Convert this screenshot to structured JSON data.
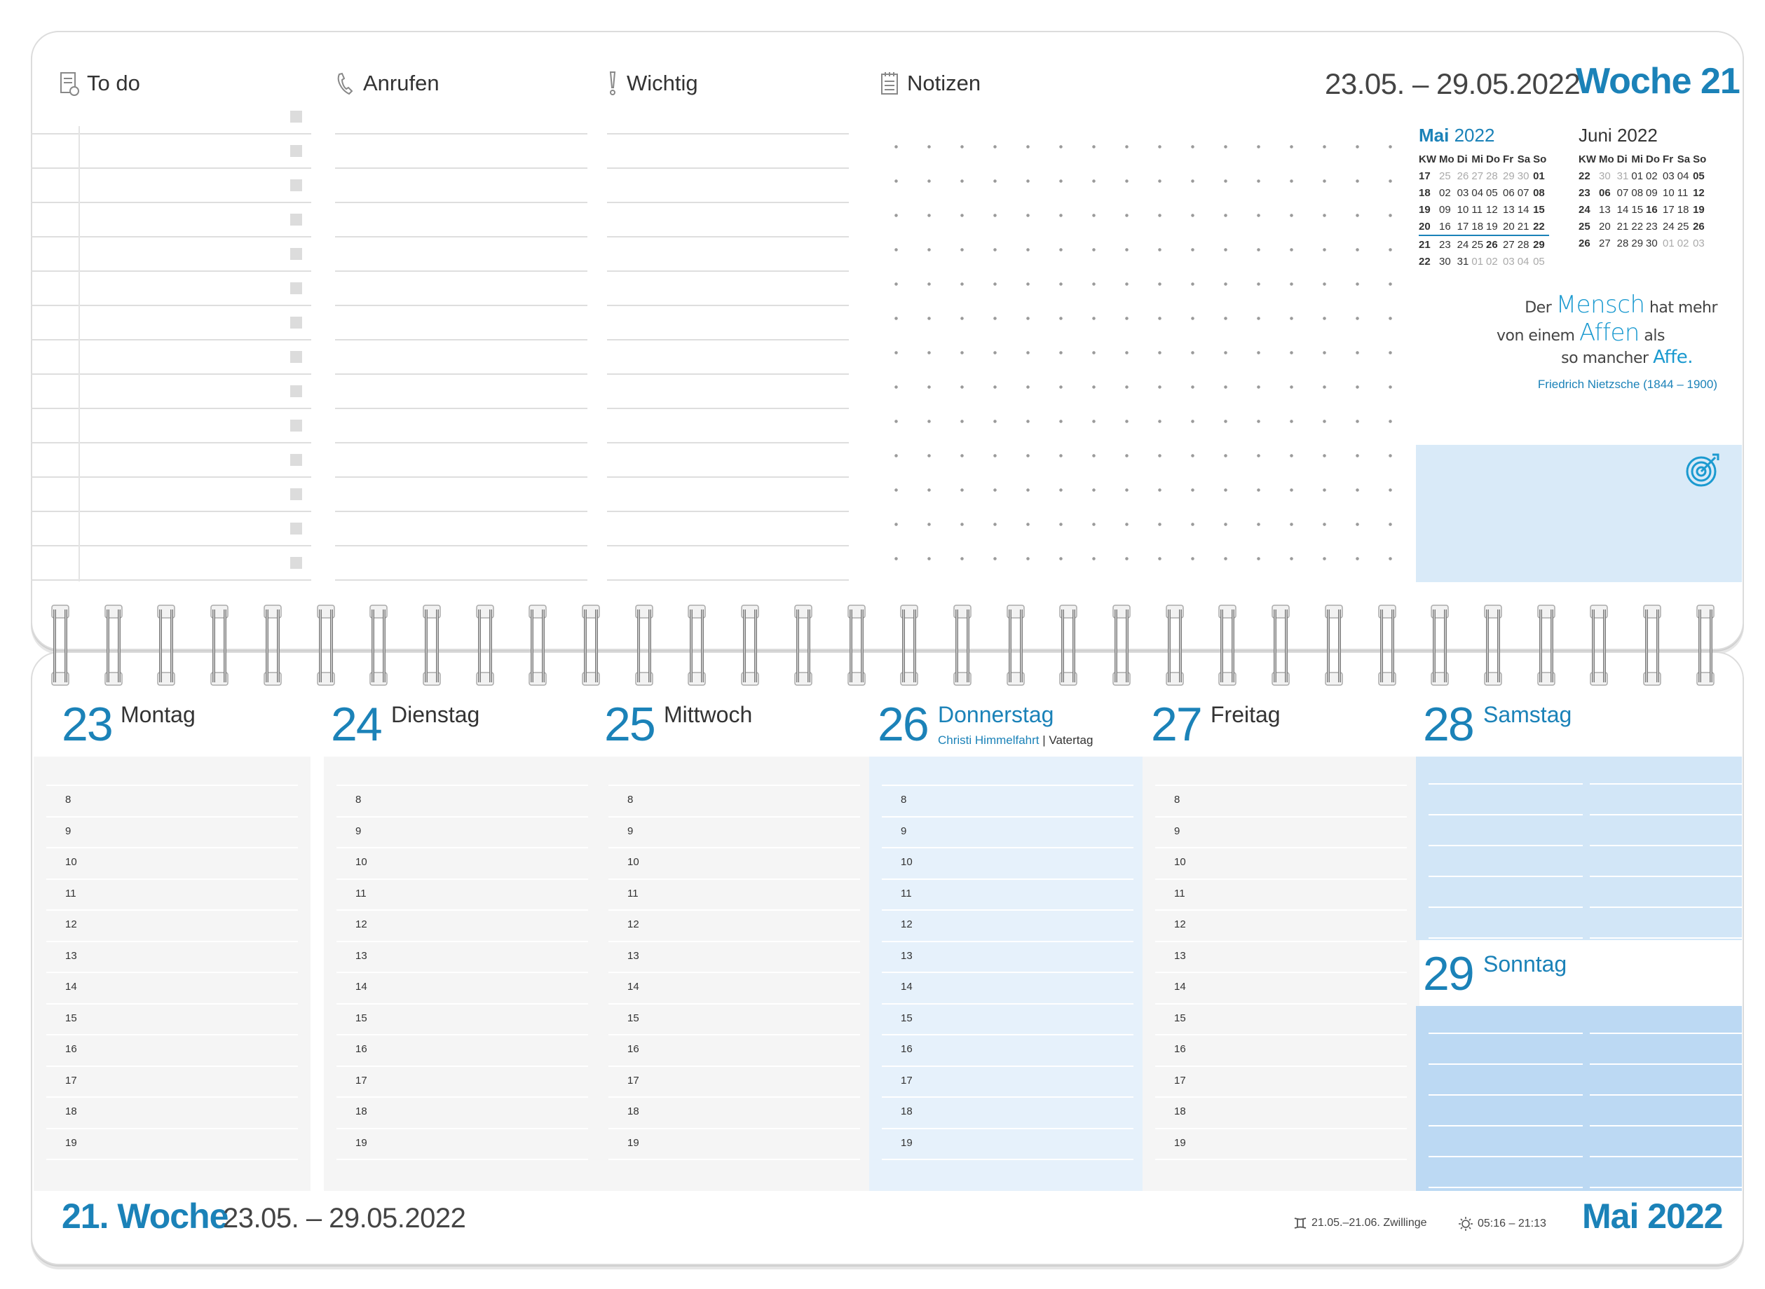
{
  "header": {
    "columns": [
      {
        "label": "To do",
        "icon": "todo-list-icon"
      },
      {
        "label": "Anrufen",
        "icon": "phone-icon"
      },
      {
        "label": "Wichtig",
        "icon": "exclamation-icon"
      },
      {
        "label": "Notizen",
        "icon": "notepad-icon"
      }
    ],
    "week_range": "23.05. – 29.05.2022",
    "week_label": "Woche 21"
  },
  "mini_calendars": [
    {
      "month": "Mai",
      "year": "2022",
      "weekday_headers": [
        "KW",
        "Mo",
        "Di",
        "Mi",
        "Do",
        "Fr",
        "Sa",
        "So"
      ],
      "rows": [
        [
          "17",
          "25",
          "26",
          "27",
          "28",
          "29",
          "30",
          "01"
        ],
        [
          "18",
          "02",
          "03",
          "04",
          "05",
          "06",
          "07",
          "08"
        ],
        [
          "19",
          "09",
          "10",
          "11",
          "12",
          "13",
          "14",
          "15"
        ],
        [
          "20",
          "16",
          "17",
          "18",
          "19",
          "20",
          "21",
          "22"
        ],
        [
          "21",
          "23",
          "24",
          "25",
          "26",
          "27",
          "28",
          "29"
        ],
        [
          "22",
          "30",
          "31",
          "01",
          "02",
          "03",
          "04",
          "05"
        ]
      ]
    },
    {
      "month": "Juni",
      "year": "2022",
      "weekday_headers": [
        "KW",
        "Mo",
        "Di",
        "Mi",
        "Do",
        "Fr",
        "Sa",
        "So"
      ],
      "rows": [
        [
          "22",
          "30",
          "31",
          "01",
          "02",
          "03",
          "04",
          "05"
        ],
        [
          "23",
          "06",
          "07",
          "08",
          "09",
          "10",
          "11",
          "12"
        ],
        [
          "24",
          "13",
          "14",
          "15",
          "16",
          "17",
          "18",
          "19"
        ],
        [
          "25",
          "20",
          "21",
          "22",
          "23",
          "24",
          "25",
          "26"
        ],
        [
          "26",
          "27",
          "28",
          "29",
          "30",
          "01",
          "02",
          "03"
        ]
      ]
    }
  ],
  "quote": {
    "line1_a": "Der ",
    "line1_b": "Mensch",
    "line1_c": " hat mehr",
    "line2_a": "von einem ",
    "line2_b": "Affen",
    "line2_c": " als",
    "line3_a": "so mancher ",
    "line3_b": "Affe.",
    "author": "Friedrich Nietzsche (1844 – 1900)"
  },
  "goal_icon": "target-icon",
  "days": [
    {
      "num": "23",
      "name": "Montag"
    },
    {
      "num": "24",
      "name": "Dienstag"
    },
    {
      "num": "25",
      "name": "Mittwoch"
    },
    {
      "num": "26",
      "name": "Donnerstag",
      "holiday": "Christi Himmelfahrt",
      "holiday_sep": " | ",
      "holiday_2": "Vatertag"
    },
    {
      "num": "27",
      "name": "Freitag"
    },
    {
      "num": "28",
      "name": "Samstag"
    },
    {
      "num": "29",
      "name": "Sonntag"
    }
  ],
  "hours": [
    "8",
    "9",
    "10",
    "11",
    "12",
    "13",
    "14",
    "15",
    "16",
    "17",
    "18",
    "19"
  ],
  "footer": {
    "week": "21. Woche",
    "range": "23.05. – 29.05.2022",
    "zodiac": "21.05.–21.06. Zwillinge",
    "zodiac_icon": "gemini-icon",
    "sun": "05:16 – 21:13",
    "sun_icon": "sun-icon",
    "month": "Mai 2022"
  },
  "colors": {
    "accent": "#1b82b8",
    "thursday_bg": "#e6f1fb",
    "weekend_bg": "#d2e6f7"
  }
}
